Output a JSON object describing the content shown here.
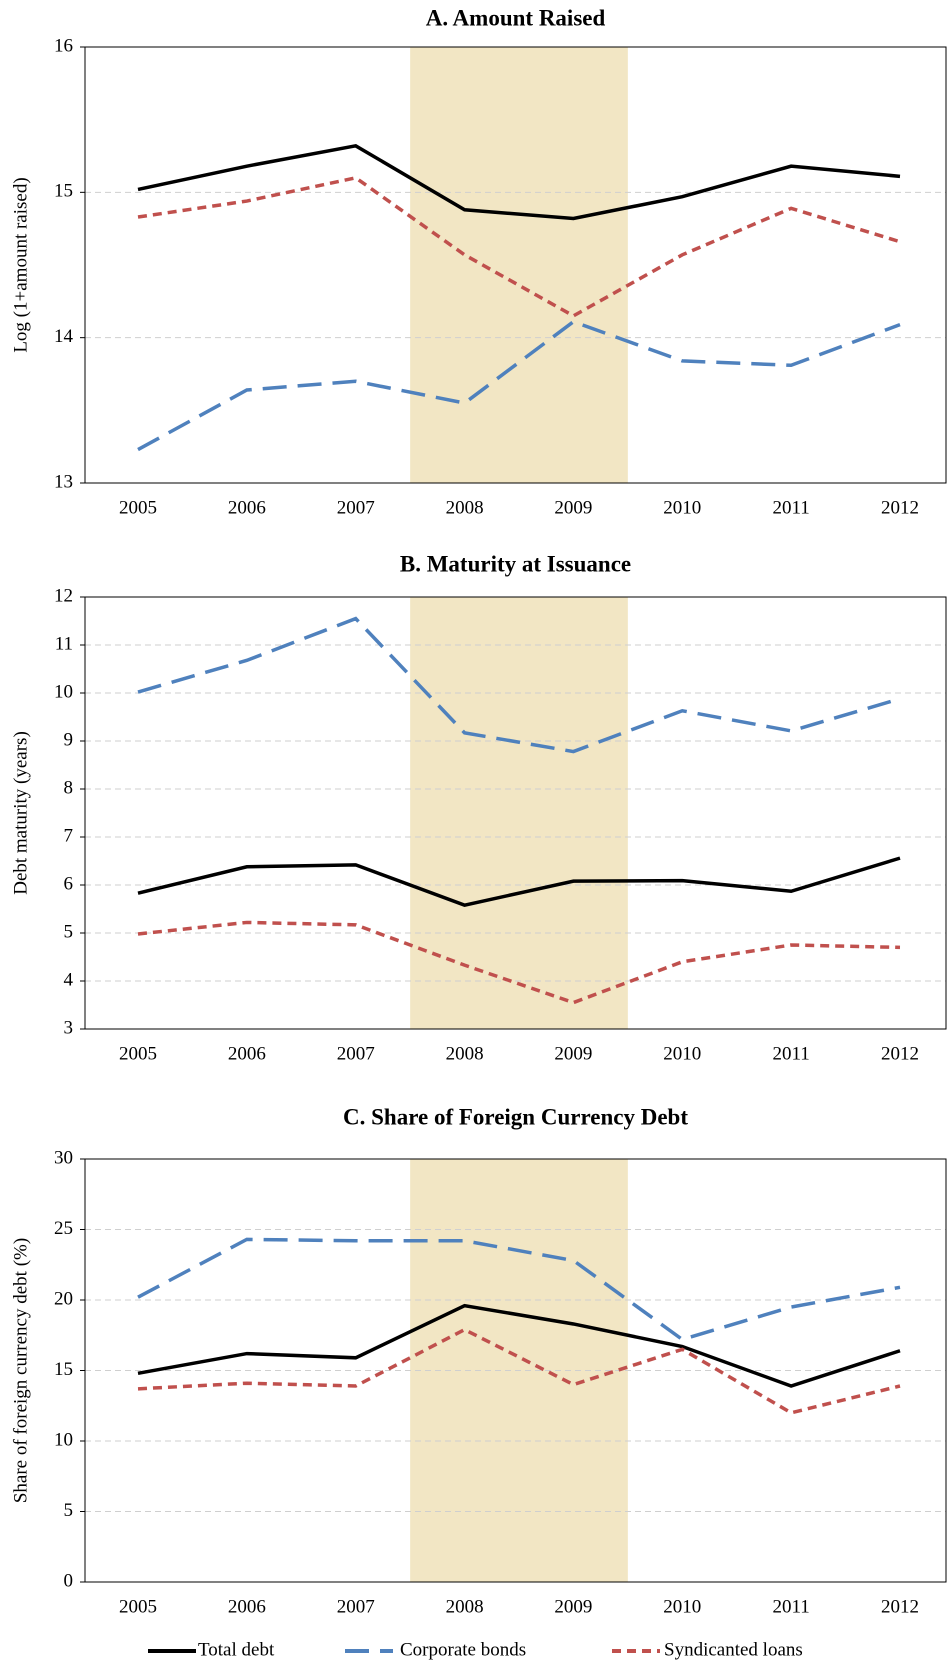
{
  "chart_data": [
    {
      "type": "line",
      "title": "A. Amount Raised",
      "y_label": "Log (1+amount raised)",
      "categories": [
        "2005",
        "2006",
        "2007",
        "2008",
        "2009",
        "2010",
        "2011",
        "2012"
      ],
      "ylim": [
        13,
        16
      ],
      "yticks": [
        13,
        14,
        15,
        16
      ],
      "grid": true,
      "series": [
        {
          "color": "#000000",
          "values": [
            15.02,
            15.18,
            15.32,
            14.88,
            14.82,
            14.97,
            15.18,
            15.11
          ]
        },
        {
          "color": "#4f81bd",
          "values": [
            13.23,
            13.64,
            13.7,
            13.55,
            14.11,
            13.84,
            13.81,
            14.09
          ]
        },
        {
          "color": "#c0504d",
          "values": [
            14.83,
            14.94,
            15.1,
            14.57,
            14.15,
            14.57,
            14.89,
            14.66
          ]
        }
      ]
    },
    {
      "type": "line",
      "title": "B. Maturity at Issuance",
      "y_label": "Debt maturity (years)",
      "categories": [
        "2005",
        "2006",
        "2007",
        "2008",
        "2009",
        "2010",
        "2011",
        "2012"
      ],
      "ylim": [
        3,
        12
      ],
      "yticks": [
        3,
        4,
        5,
        6,
        7,
        8,
        9,
        10,
        11,
        12
      ],
      "grid": true,
      "series": [
        {
          "color": "#000000",
          "values": [
            5.83,
            6.38,
            6.42,
            5.58,
            6.08,
            6.09,
            5.87,
            6.56
          ]
        },
        {
          "color": "#4f81bd",
          "values": [
            10.02,
            10.68,
            11.55,
            9.17,
            8.78,
            9.63,
            9.21,
            9.88
          ]
        },
        {
          "color": "#c0504d",
          "values": [
            4.98,
            5.22,
            5.17,
            4.33,
            3.55,
            4.4,
            4.75,
            4.7
          ]
        }
      ]
    },
    {
      "type": "line",
      "title": "C. Share of Foreign Currency Debt",
      "y_label": "Share of foreign currency debt (%)",
      "categories": [
        "2005",
        "2006",
        "2007",
        "2008",
        "2009",
        "2010",
        "2011",
        "2012"
      ],
      "ylim": [
        0,
        30
      ],
      "yticks": [
        0,
        5,
        10,
        15,
        20,
        25,
        30
      ],
      "grid": true,
      "series": [
        {
          "color": "#000000",
          "values": [
            14.8,
            16.2,
            15.9,
            19.6,
            18.3,
            16.7,
            13.9,
            16.4
          ]
        },
        {
          "color": "#4f81bd",
          "values": [
            20.2,
            24.3,
            24.2,
            24.2,
            22.8,
            17.2,
            19.5,
            20.9
          ]
        },
        {
          "color": "#c0504d",
          "values": [
            13.7,
            14.1,
            13.9,
            17.9,
            14.0,
            16.5,
            12.0,
            13.9
          ]
        }
      ]
    }
  ],
  "legend": [
    {
      "name": "Total debt",
      "color": "#000000"
    },
    {
      "name": "Corporate bonds",
      "color": "#4f81bd"
    },
    {
      "name": "Syndicanted loans",
      "color": "#c0504d"
    }
  ]
}
